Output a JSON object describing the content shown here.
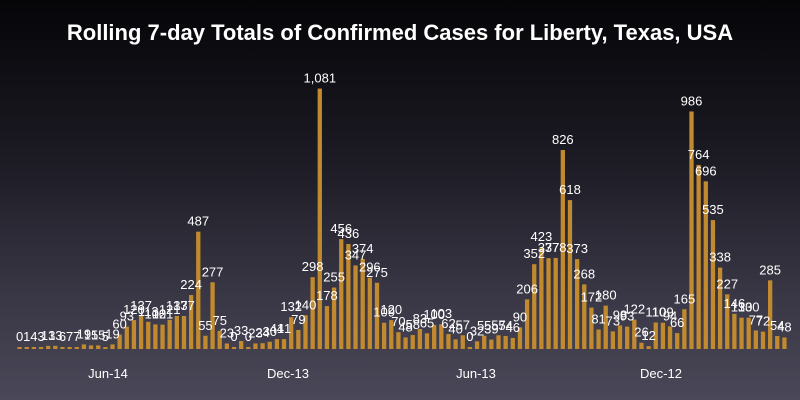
{
  "chart_data": {
    "type": "bar",
    "title": "Rolling 7-day Totals of Confirmed Cases for Liberty, Texas, USA",
    "xlabel": "",
    "ylabel": "",
    "x_tick_labels": [
      "Jun-14",
      "Dec-13",
      "Jun-13",
      "Dec-12"
    ],
    "bar_color": "#c28a2e",
    "ylim": [
      0,
      1100
    ],
    "grid": false,
    "legend": "none",
    "values": [
      0,
      1,
      4,
      3,
      13,
      13,
      6,
      7,
      7,
      19,
      15,
      15,
      5,
      19,
      60,
      93,
      120,
      137,
      113,
      102,
      101,
      121,
      137,
      137,
      224,
      487,
      55,
      277,
      75,
      23,
      0,
      33,
      0,
      23,
      24,
      30,
      41,
      41,
      132,
      79,
      140,
      298,
      1081,
      178,
      255,
      456,
      436,
      347,
      374,
      296,
      275,
      109,
      120,
      70,
      48,
      58,
      83,
      65,
      100,
      103,
      62,
      40,
      57,
      0,
      32,
      55,
      39,
      57,
      54,
      46,
      90,
      206,
      352,
      423,
      377,
      378,
      826,
      618,
      373,
      268,
      172,
      81,
      180,
      73,
      98,
      93,
      122,
      26,
      12,
      110,
      109,
      94,
      66,
      165,
      986,
      764,
      696,
      535,
      338,
      227,
      146,
      130,
      130,
      77,
      72,
      285,
      54,
      48
    ],
    "data_labels": [
      "0",
      "1",
      "4",
      "3",
      "13",
      "13",
      "6",
      "7",
      "7",
      "19",
      "15",
      "15",
      "5",
      "19",
      "60",
      "93",
      "120",
      "137",
      "113",
      "102",
      "101",
      "121",
      "137",
      "137",
      "224",
      "487",
      "55",
      "277",
      "75",
      "23",
      "0",
      "33",
      "0",
      "23",
      "24",
      "30",
      "41",
      "41",
      "132",
      "79",
      "140",
      "298",
      "1,081",
      "178",
      "255",
      "456",
      "436",
      "347",
      "374",
      "296",
      "275",
      "109",
      "120",
      "70",
      "48",
      "58",
      "83",
      "65",
      "100",
      "103",
      "62",
      "40",
      "57",
      "0",
      "32",
      "55",
      "39",
      "57",
      "54",
      "46",
      "90",
      "206",
      "352",
      "423",
      "377",
      "378",
      "826",
      "618",
      "373",
      "268",
      "172",
      "81",
      "180",
      "73",
      "98",
      "93",
      "122",
      "26",
      "12",
      "110",
      "109",
      "94",
      "66",
      "165",
      "986",
      "764",
      "696",
      "535",
      "338",
      "227",
      "146",
      "130",
      "130",
      "77",
      "72",
      "285",
      "54",
      "48"
    ]
  }
}
